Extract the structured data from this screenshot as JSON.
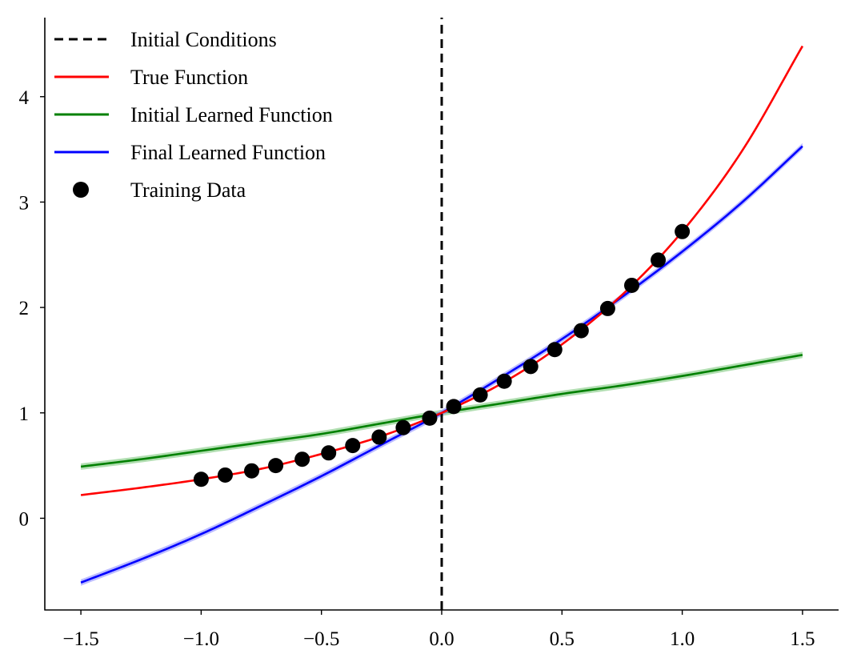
{
  "chart_data": {
    "type": "line",
    "title": "",
    "xlabel": "",
    "ylabel": "",
    "xlim": [
      -1.65,
      1.65
    ],
    "ylim": [
      -0.87,
      4.75
    ],
    "xticks": [
      -1.5,
      -1.0,
      -0.5,
      0.0,
      0.5,
      1.0,
      1.5
    ],
    "xtick_labels": [
      "−1.5",
      "−1.0",
      "−0.5",
      "0.0",
      "0.5",
      "1.0",
      "1.5"
    ],
    "yticks": [
      0,
      1,
      2,
      3,
      4
    ],
    "ytick_labels": [
      "0",
      "1",
      "2",
      "3",
      "4"
    ],
    "grid": false,
    "legend_position": "upper-left",
    "initial_conditions_x": 0.0,
    "series": [
      {
        "name": "Initial Conditions",
        "style": "dashed",
        "color": "#000000",
        "x": [
          0.0,
          0.0
        ],
        "y": [
          -0.87,
          4.75
        ]
      },
      {
        "name": "True Function",
        "style": "line",
        "color": "#ff0000",
        "x": [
          -1.5,
          -1.25,
          -1.0,
          -0.75,
          -0.5,
          -0.25,
          0.0,
          0.25,
          0.5,
          0.75,
          1.0,
          1.25,
          1.5
        ],
        "y": [
          0.22,
          0.29,
          0.37,
          0.47,
          0.61,
          0.78,
          1.0,
          1.28,
          1.65,
          2.12,
          2.72,
          3.49,
          4.48
        ]
      },
      {
        "name": "Initial Learned Function",
        "style": "line",
        "color": "#008000",
        "band_color": "#90d090",
        "x": [
          -1.5,
          -1.25,
          -1.0,
          -0.75,
          -0.5,
          -0.25,
          0.0,
          0.25,
          0.5,
          0.75,
          1.0,
          1.25,
          1.5
        ],
        "y": [
          0.49,
          0.56,
          0.64,
          0.72,
          0.8,
          0.9,
          1.0,
          1.09,
          1.18,
          1.26,
          1.35,
          1.45,
          1.55
        ]
      },
      {
        "name": "Final Learned Function",
        "style": "line",
        "color": "#0000ff",
        "band_color": "#a0a0ff",
        "x": [
          -1.5,
          -1.25,
          -1.0,
          -0.75,
          -0.5,
          -0.25,
          0.0,
          0.25,
          0.5,
          0.75,
          1.0,
          1.25,
          1.5
        ],
        "y": [
          -0.61,
          -0.39,
          -0.15,
          0.12,
          0.4,
          0.7,
          1.0,
          1.34,
          1.7,
          2.1,
          2.53,
          3.0,
          3.53
        ]
      },
      {
        "name": "Training Data",
        "style": "scatter",
        "color": "#000000",
        "x": [
          -1.0,
          -0.9,
          -0.79,
          -0.69,
          -0.58,
          -0.47,
          -0.37,
          -0.26,
          -0.16,
          -0.05,
          0.05,
          0.16,
          0.26,
          0.37,
          0.47,
          0.58,
          0.69,
          0.79,
          0.9,
          1.0
        ],
        "y": [
          0.37,
          0.41,
          0.45,
          0.5,
          0.56,
          0.62,
          0.69,
          0.77,
          0.86,
          0.95,
          1.06,
          1.17,
          1.3,
          1.44,
          1.6,
          1.78,
          1.99,
          2.21,
          2.45,
          2.72
        ]
      }
    ]
  }
}
